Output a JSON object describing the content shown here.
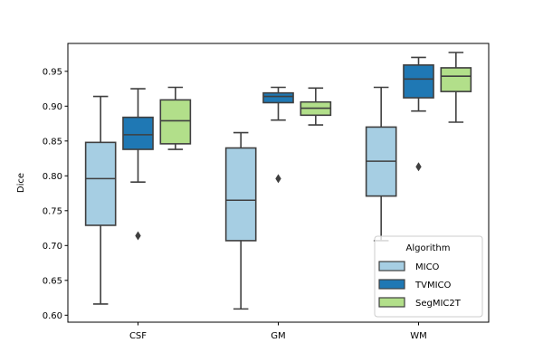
{
  "chart_data": {
    "type": "box",
    "title": "",
    "xlabel": "",
    "ylabel": "Dice",
    "ylim": [
      0.59,
      0.99
    ],
    "yticks": [
      0.6,
      0.65,
      0.7,
      0.75,
      0.8,
      0.85,
      0.9,
      0.95
    ],
    "ytick_labels": [
      "0.60",
      "0.65",
      "0.70",
      "0.75",
      "0.80",
      "0.85",
      "0.90",
      "0.95"
    ],
    "categories": [
      "CSF",
      "GM",
      "WM"
    ],
    "grid": false,
    "legend": {
      "title": "Algorithm",
      "placement": "lower-right"
    },
    "series": [
      {
        "name": "MICO",
        "color": "#a6cee3",
        "boxes": [
          {
            "whisker_low": 0.616,
            "q1": 0.729,
            "median": 0.796,
            "q3": 0.848,
            "whisker_high": 0.914,
            "outliers": []
          },
          {
            "whisker_low": 0.609,
            "q1": 0.707,
            "median": 0.765,
            "q3": 0.84,
            "whisker_high": 0.862,
            "outliers": []
          },
          {
            "whisker_low": 0.707,
            "q1": 0.771,
            "median": 0.821,
            "q3": 0.87,
            "whisker_high": 0.927,
            "outliers": []
          }
        ]
      },
      {
        "name": "TVMICO",
        "color": "#1f78b4",
        "boxes": [
          {
            "whisker_low": 0.791,
            "q1": 0.838,
            "median": 0.859,
            "q3": 0.884,
            "whisker_high": 0.925,
            "outliers": [
              0.714
            ]
          },
          {
            "whisker_low": 0.88,
            "q1": 0.905,
            "median": 0.914,
            "q3": 0.919,
            "whisker_high": 0.927,
            "outliers": [
              0.796
            ]
          },
          {
            "whisker_low": 0.893,
            "q1": 0.912,
            "median": 0.939,
            "q3": 0.959,
            "whisker_high": 0.97,
            "outliers": [
              0.813
            ]
          }
        ]
      },
      {
        "name": "SegMIC2T",
        "color": "#b2df8a",
        "boxes": [
          {
            "whisker_low": 0.838,
            "q1": 0.846,
            "median": 0.879,
            "q3": 0.909,
            "whisker_high": 0.927,
            "outliers": []
          },
          {
            "whisker_low": 0.873,
            "q1": 0.887,
            "median": 0.897,
            "q3": 0.906,
            "whisker_high": 0.926,
            "outliers": []
          },
          {
            "whisker_low": 0.877,
            "q1": 0.921,
            "median": 0.943,
            "q3": 0.955,
            "whisker_high": 0.977,
            "outliers": []
          }
        ]
      }
    ]
  }
}
